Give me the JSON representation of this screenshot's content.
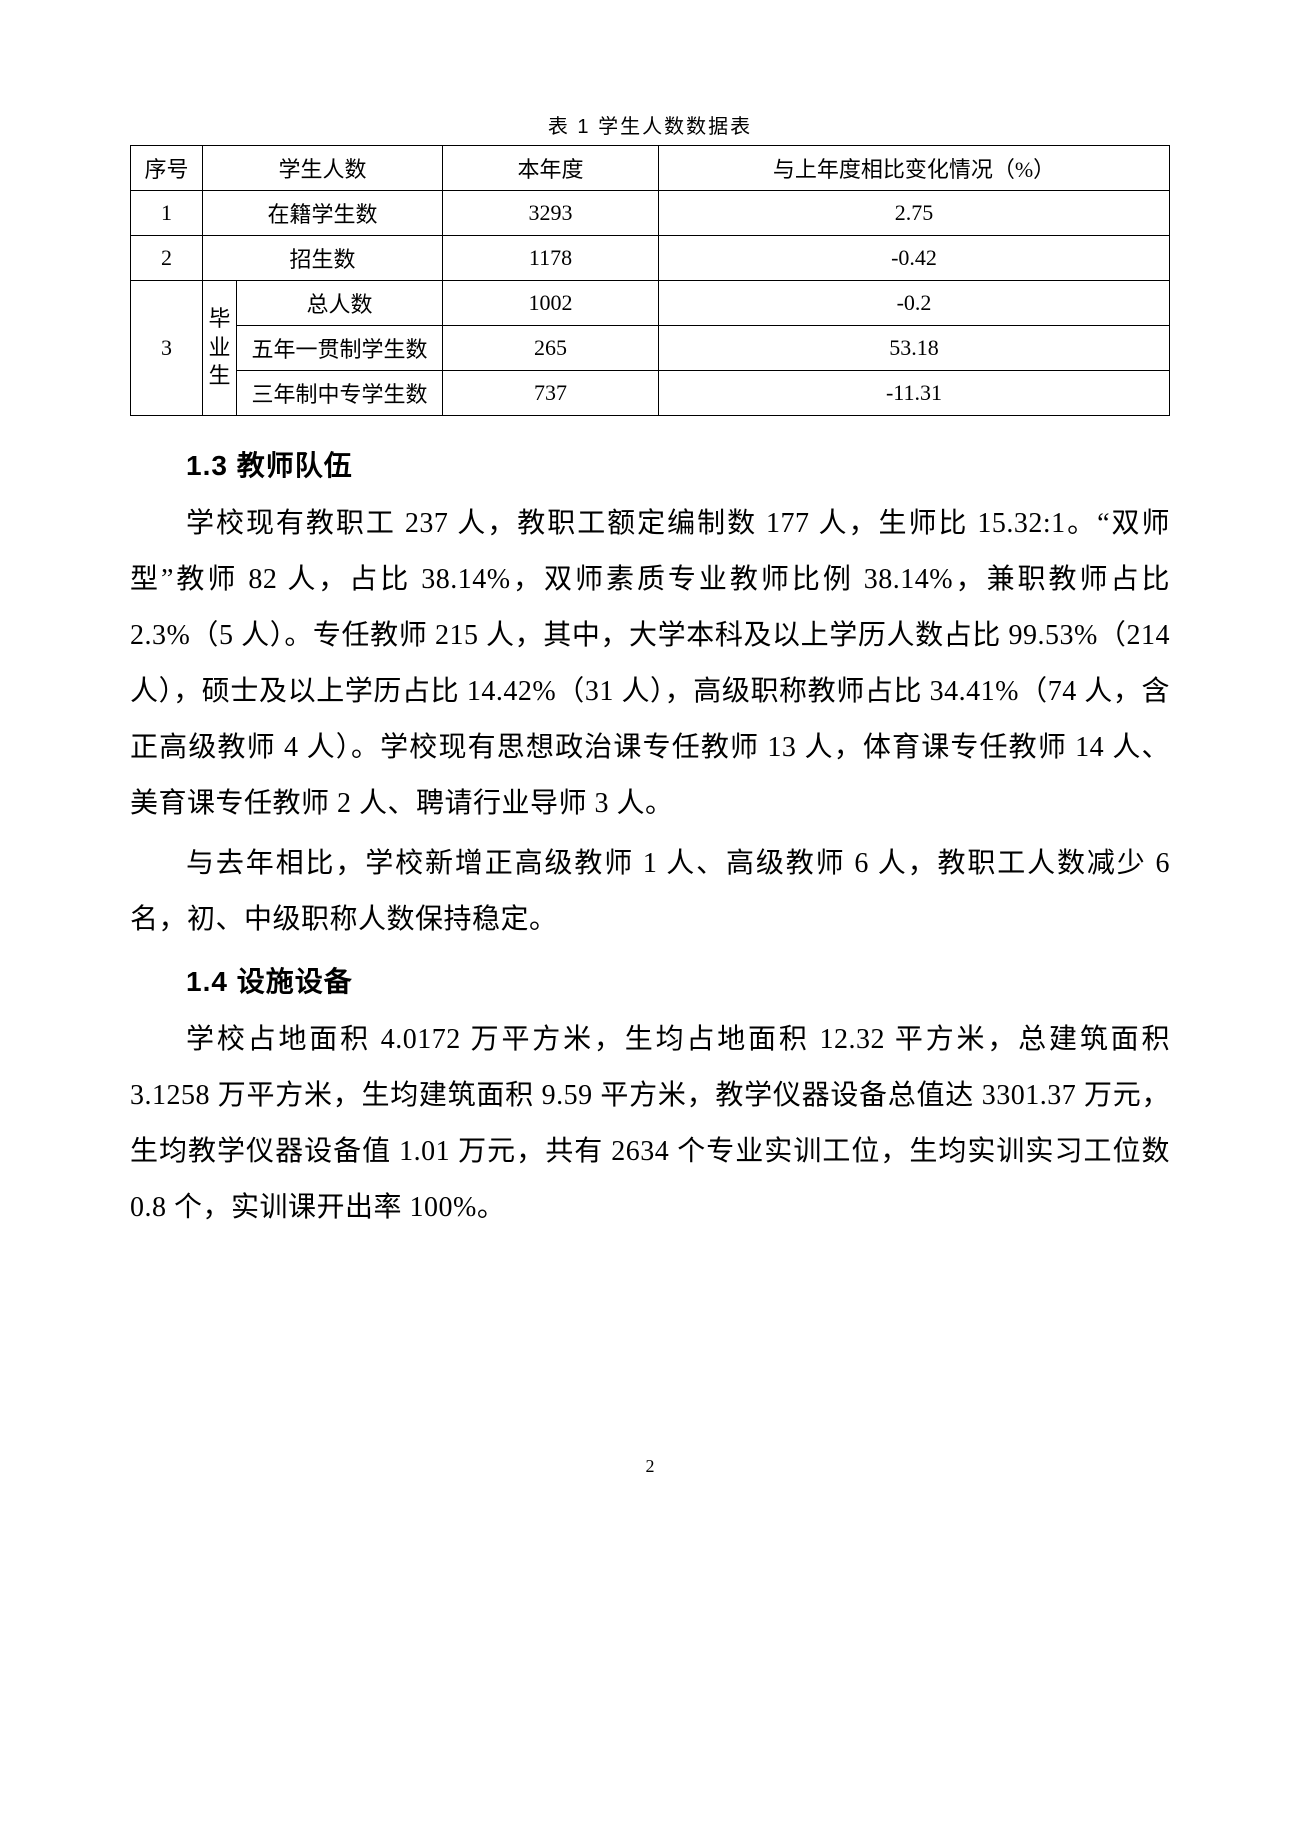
{
  "table": {
    "caption": "表 1 学生人数数据表",
    "headers": {
      "seq": "序号",
      "students": "学生人数",
      "this_year": "本年度",
      "change": "与上年度相比变化情况（%）"
    },
    "rows": [
      {
        "seq": "1",
        "label": "在籍学生数",
        "year": "3293",
        "change": "2.75"
      },
      {
        "seq": "2",
        "label": "招生数",
        "year": "1178",
        "change": "-0.42"
      }
    ],
    "grad_group": {
      "seq": "3",
      "group_label": "毕业生",
      "items": [
        {
          "label": "总人数",
          "year": "1002",
          "change": "-0.2"
        },
        {
          "label": "五年一贯制学生数",
          "year": "265",
          "change": "53.18"
        },
        {
          "label": "三年制中专学生数",
          "year": "737",
          "change": "-11.31"
        }
      ]
    }
  },
  "sections": {
    "s13": {
      "heading": "1.3 教师队伍",
      "p1": "学校现有教职工 237 人，教职工额定编制数 177 人，生师比 15.32:1。“双师型”教师 82 人，占比 38.14%，双师素质专业教师比例 38.14%，兼职教师占比 2.3%（5 人）。专任教师 215 人，其中，大学本科及以上学历人数占比 99.53%（214 人），硕士及以上学历占比 14.42%（31 人），高级职称教师占比 34.41%（74 人，含正高级教师 4 人）。学校现有思想政治课专任教师 13 人，体育课专任教师 14 人、美育课专任教师 2 人、聘请行业导师 3 人。",
      "p2": "与去年相比，学校新增正高级教师 1 人、高级教师 6 人，教职工人数减少 6 名，初、中级职称人数保持稳定。"
    },
    "s14": {
      "heading": "1.4 设施设备",
      "p1": "学校占地面积 4.0172 万平方米，生均占地面积 12.32 平方米，总建筑面积 3.1258 万平方米，生均建筑面积 9.59 平方米，教学仪器设备总值达 3301.37 万元，生均教学仪器设备值 1.01 万元，共有 2634 个专业实训工位，生均实训实习工位数 0.8 个，实训课开出率 100%。"
    }
  },
  "page_number": "2"
}
